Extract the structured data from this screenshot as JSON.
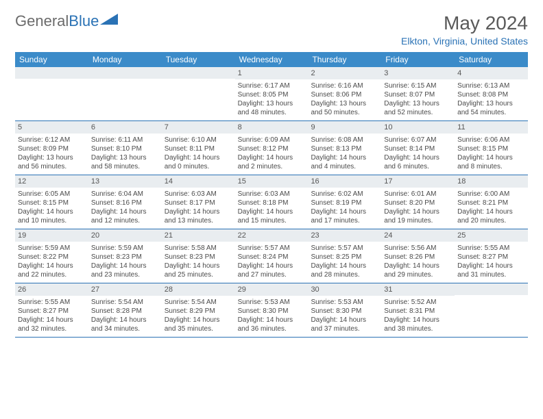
{
  "logo": {
    "part1": "General",
    "part2": "Blue"
  },
  "title": "May 2024",
  "location": "Elkton, Virginia, United States",
  "colors": {
    "header_bg": "#3b8bc9",
    "header_text": "#ffffff",
    "accent": "#2a72b5",
    "daynum_bg": "#e9edf0",
    "text": "#4a4a4a",
    "logo_gray": "#6b6b6b"
  },
  "day_names": [
    "Sunday",
    "Monday",
    "Tuesday",
    "Wednesday",
    "Thursday",
    "Friday",
    "Saturday"
  ],
  "weeks": [
    [
      null,
      null,
      null,
      {
        "n": "1",
        "sr": "Sunrise: 6:17 AM",
        "ss": "Sunset: 8:05 PM",
        "d1": "Daylight: 13 hours",
        "d2": "and 48 minutes."
      },
      {
        "n": "2",
        "sr": "Sunrise: 6:16 AM",
        "ss": "Sunset: 8:06 PM",
        "d1": "Daylight: 13 hours",
        "d2": "and 50 minutes."
      },
      {
        "n": "3",
        "sr": "Sunrise: 6:15 AM",
        "ss": "Sunset: 8:07 PM",
        "d1": "Daylight: 13 hours",
        "d2": "and 52 minutes."
      },
      {
        "n": "4",
        "sr": "Sunrise: 6:13 AM",
        "ss": "Sunset: 8:08 PM",
        "d1": "Daylight: 13 hours",
        "d2": "and 54 minutes."
      }
    ],
    [
      {
        "n": "5",
        "sr": "Sunrise: 6:12 AM",
        "ss": "Sunset: 8:09 PM",
        "d1": "Daylight: 13 hours",
        "d2": "and 56 minutes."
      },
      {
        "n": "6",
        "sr": "Sunrise: 6:11 AM",
        "ss": "Sunset: 8:10 PM",
        "d1": "Daylight: 13 hours",
        "d2": "and 58 minutes."
      },
      {
        "n": "7",
        "sr": "Sunrise: 6:10 AM",
        "ss": "Sunset: 8:11 PM",
        "d1": "Daylight: 14 hours",
        "d2": "and 0 minutes."
      },
      {
        "n": "8",
        "sr": "Sunrise: 6:09 AM",
        "ss": "Sunset: 8:12 PM",
        "d1": "Daylight: 14 hours",
        "d2": "and 2 minutes."
      },
      {
        "n": "9",
        "sr": "Sunrise: 6:08 AM",
        "ss": "Sunset: 8:13 PM",
        "d1": "Daylight: 14 hours",
        "d2": "and 4 minutes."
      },
      {
        "n": "10",
        "sr": "Sunrise: 6:07 AM",
        "ss": "Sunset: 8:14 PM",
        "d1": "Daylight: 14 hours",
        "d2": "and 6 minutes."
      },
      {
        "n": "11",
        "sr": "Sunrise: 6:06 AM",
        "ss": "Sunset: 8:15 PM",
        "d1": "Daylight: 14 hours",
        "d2": "and 8 minutes."
      }
    ],
    [
      {
        "n": "12",
        "sr": "Sunrise: 6:05 AM",
        "ss": "Sunset: 8:15 PM",
        "d1": "Daylight: 14 hours",
        "d2": "and 10 minutes."
      },
      {
        "n": "13",
        "sr": "Sunrise: 6:04 AM",
        "ss": "Sunset: 8:16 PM",
        "d1": "Daylight: 14 hours",
        "d2": "and 12 minutes."
      },
      {
        "n": "14",
        "sr": "Sunrise: 6:03 AM",
        "ss": "Sunset: 8:17 PM",
        "d1": "Daylight: 14 hours",
        "d2": "and 13 minutes."
      },
      {
        "n": "15",
        "sr": "Sunrise: 6:03 AM",
        "ss": "Sunset: 8:18 PM",
        "d1": "Daylight: 14 hours",
        "d2": "and 15 minutes."
      },
      {
        "n": "16",
        "sr": "Sunrise: 6:02 AM",
        "ss": "Sunset: 8:19 PM",
        "d1": "Daylight: 14 hours",
        "d2": "and 17 minutes."
      },
      {
        "n": "17",
        "sr": "Sunrise: 6:01 AM",
        "ss": "Sunset: 8:20 PM",
        "d1": "Daylight: 14 hours",
        "d2": "and 19 minutes."
      },
      {
        "n": "18",
        "sr": "Sunrise: 6:00 AM",
        "ss": "Sunset: 8:21 PM",
        "d1": "Daylight: 14 hours",
        "d2": "and 20 minutes."
      }
    ],
    [
      {
        "n": "19",
        "sr": "Sunrise: 5:59 AM",
        "ss": "Sunset: 8:22 PM",
        "d1": "Daylight: 14 hours",
        "d2": "and 22 minutes."
      },
      {
        "n": "20",
        "sr": "Sunrise: 5:59 AM",
        "ss": "Sunset: 8:23 PM",
        "d1": "Daylight: 14 hours",
        "d2": "and 23 minutes."
      },
      {
        "n": "21",
        "sr": "Sunrise: 5:58 AM",
        "ss": "Sunset: 8:23 PM",
        "d1": "Daylight: 14 hours",
        "d2": "and 25 minutes."
      },
      {
        "n": "22",
        "sr": "Sunrise: 5:57 AM",
        "ss": "Sunset: 8:24 PM",
        "d1": "Daylight: 14 hours",
        "d2": "and 27 minutes."
      },
      {
        "n": "23",
        "sr": "Sunrise: 5:57 AM",
        "ss": "Sunset: 8:25 PM",
        "d1": "Daylight: 14 hours",
        "d2": "and 28 minutes."
      },
      {
        "n": "24",
        "sr": "Sunrise: 5:56 AM",
        "ss": "Sunset: 8:26 PM",
        "d1": "Daylight: 14 hours",
        "d2": "and 29 minutes."
      },
      {
        "n": "25",
        "sr": "Sunrise: 5:55 AM",
        "ss": "Sunset: 8:27 PM",
        "d1": "Daylight: 14 hours",
        "d2": "and 31 minutes."
      }
    ],
    [
      {
        "n": "26",
        "sr": "Sunrise: 5:55 AM",
        "ss": "Sunset: 8:27 PM",
        "d1": "Daylight: 14 hours",
        "d2": "and 32 minutes."
      },
      {
        "n": "27",
        "sr": "Sunrise: 5:54 AM",
        "ss": "Sunset: 8:28 PM",
        "d1": "Daylight: 14 hours",
        "d2": "and 34 minutes."
      },
      {
        "n": "28",
        "sr": "Sunrise: 5:54 AM",
        "ss": "Sunset: 8:29 PM",
        "d1": "Daylight: 14 hours",
        "d2": "and 35 minutes."
      },
      {
        "n": "29",
        "sr": "Sunrise: 5:53 AM",
        "ss": "Sunset: 8:30 PM",
        "d1": "Daylight: 14 hours",
        "d2": "and 36 minutes."
      },
      {
        "n": "30",
        "sr": "Sunrise: 5:53 AM",
        "ss": "Sunset: 8:30 PM",
        "d1": "Daylight: 14 hours",
        "d2": "and 37 minutes."
      },
      {
        "n": "31",
        "sr": "Sunrise: 5:52 AM",
        "ss": "Sunset: 8:31 PM",
        "d1": "Daylight: 14 hours",
        "d2": "and 38 minutes."
      },
      null
    ]
  ]
}
